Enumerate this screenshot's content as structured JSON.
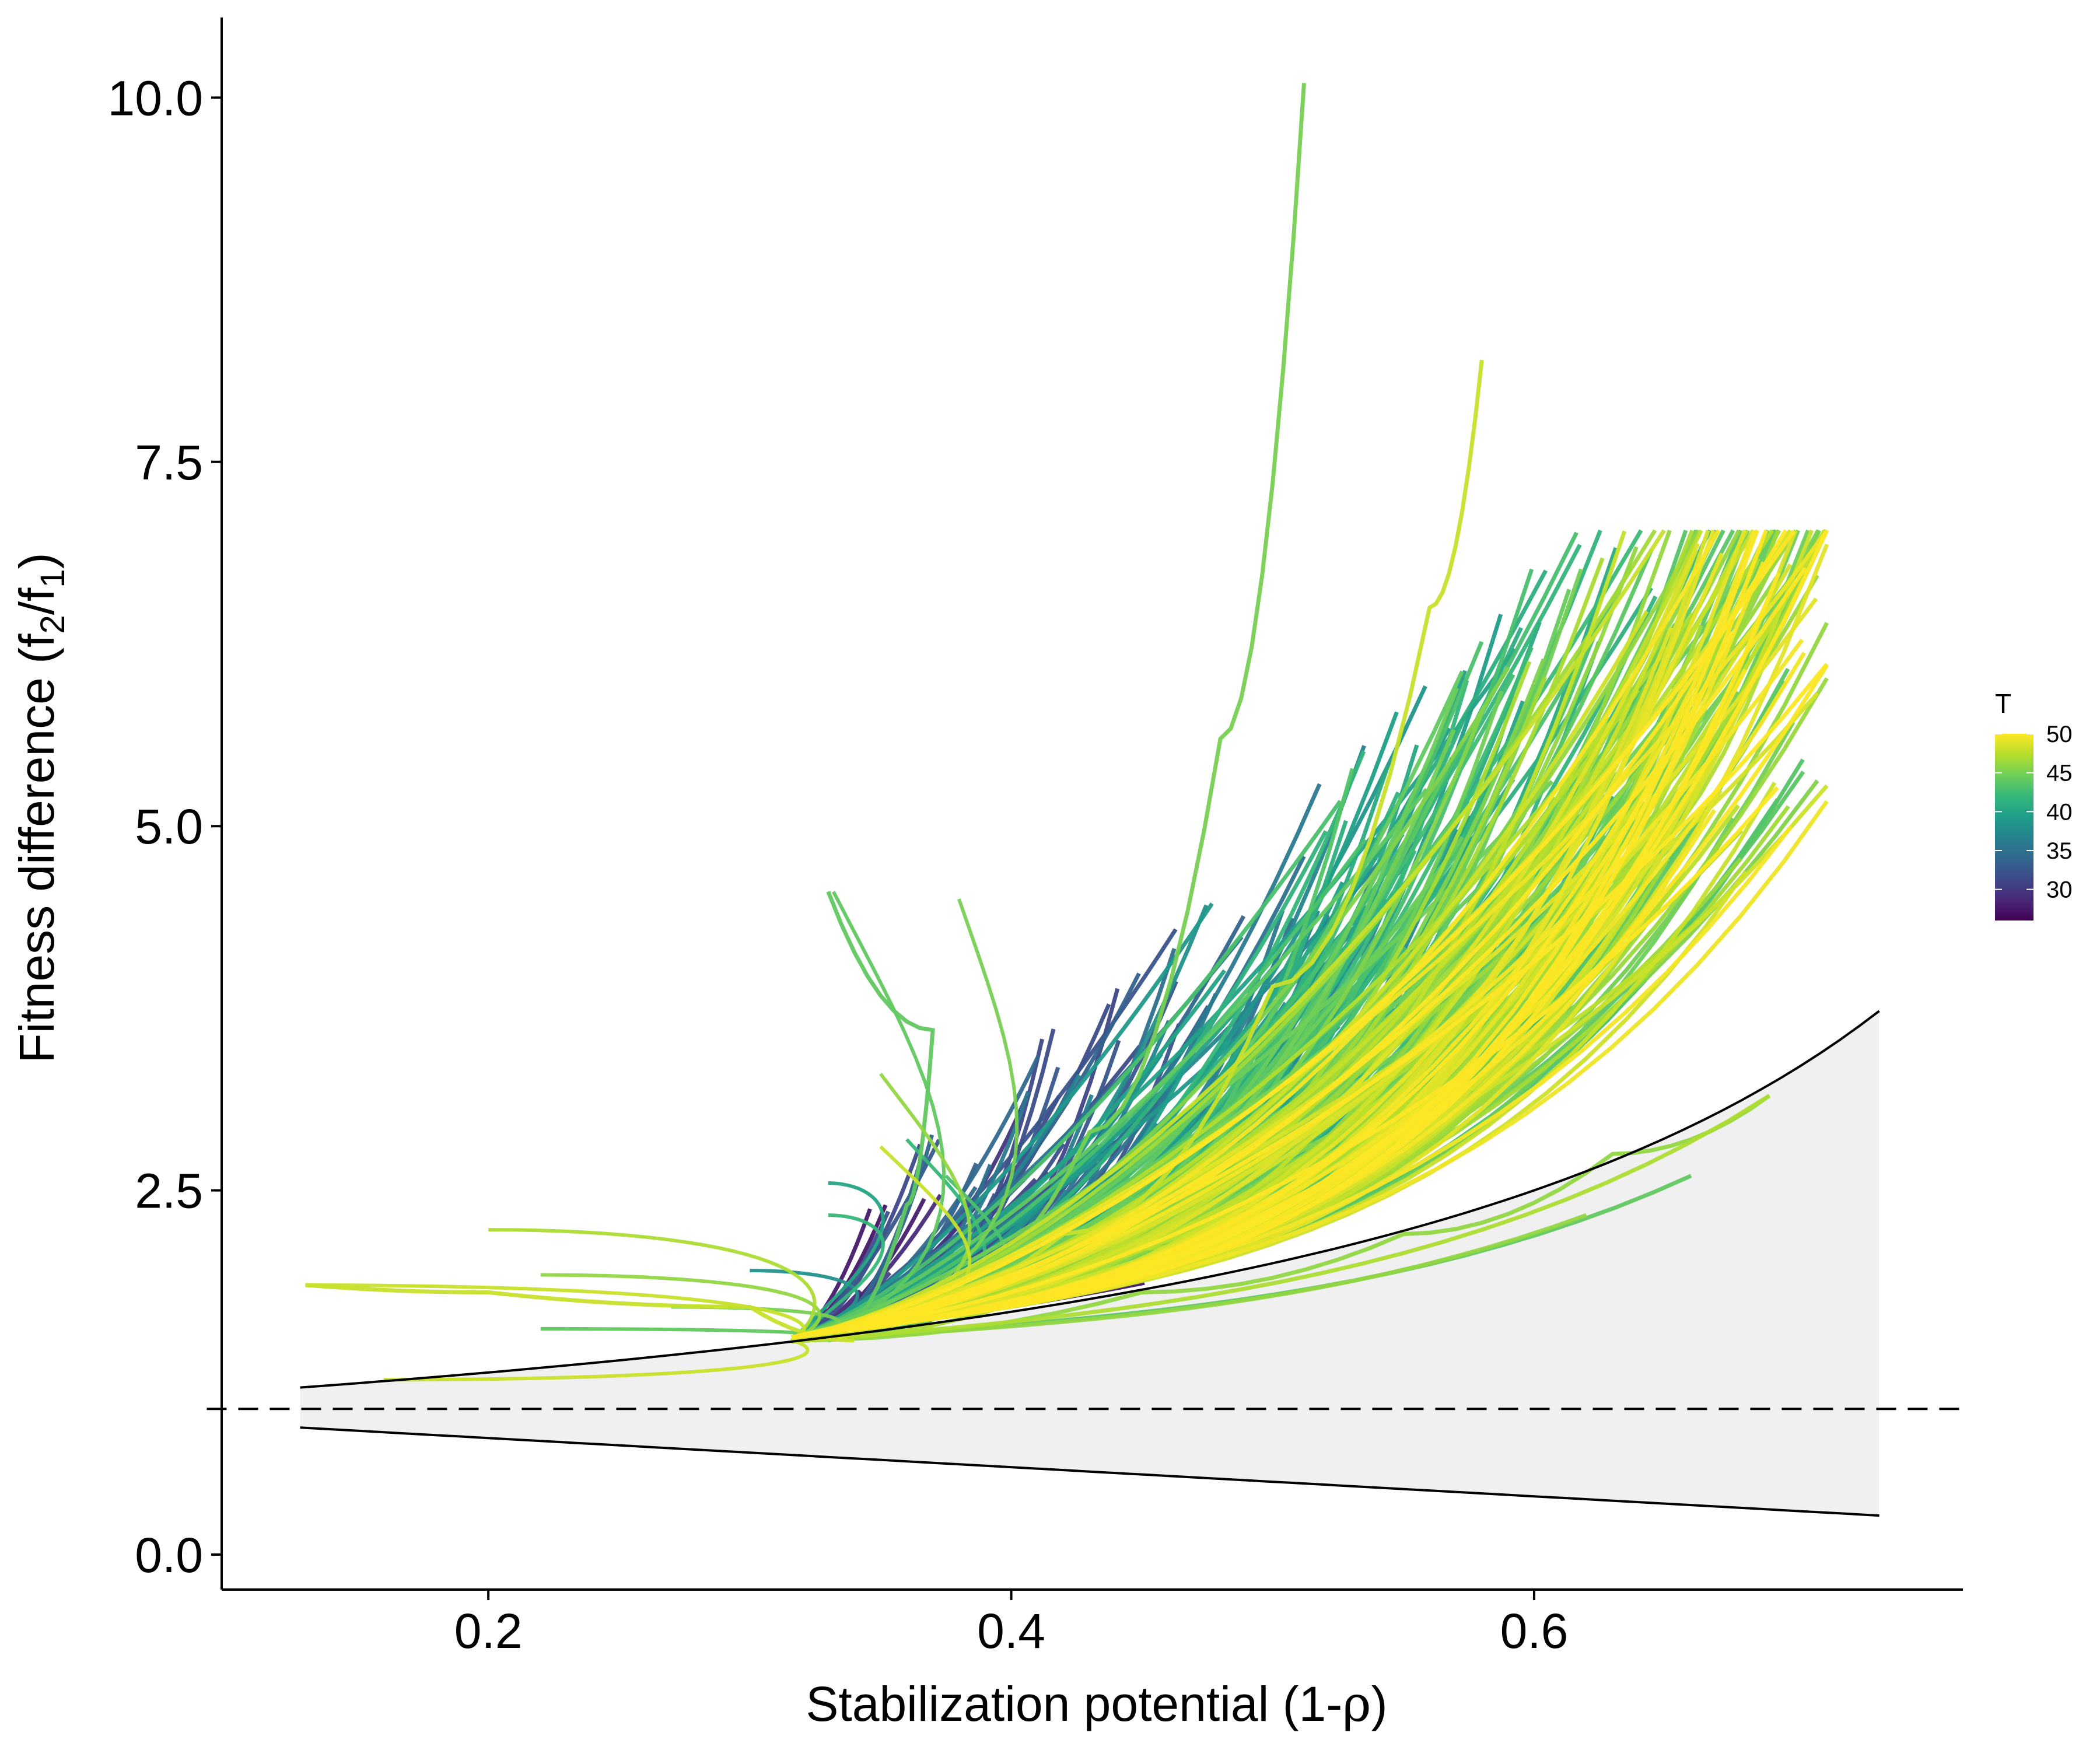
{
  "chart_data": {
    "type": "line",
    "xlabel_main": "Stabilization potential (1-",
    "xlabel_greek": "ρ",
    "xlabel_close": ")",
    "ylabel_main": "Fitness difference (f",
    "ylabel_sub1": "2",
    "ylabel_mid": "/f",
    "ylabel_sub2": "1",
    "ylabel_close": ")",
    "xlim": [
      0.098,
      0.764
    ],
    "ylim": [
      -0.24,
      10.55
    ],
    "x_ticks": [
      0.2,
      0.4,
      0.6
    ],
    "x_tick_labels": [
      "0.2",
      "0.4",
      "0.6"
    ],
    "y_ticks": [
      0.0,
      2.5,
      5.0,
      7.5,
      10.0
    ],
    "y_tick_labels": [
      "0.0",
      "2.5",
      "5.0",
      "7.5",
      "10.0"
    ],
    "grid": false,
    "reference_line": {
      "y": 1.0,
      "style": "dashed"
    },
    "coexistence_region": {
      "x_range": [
        0.128,
        0.732
      ],
      "upper_boundary": "1/(1-x)",
      "lower_boundary": "1-x",
      "fill": "#f0f0f0"
    },
    "color_legend": {
      "title": "T",
      "range": [
        26,
        50
      ],
      "ticks": [
        30,
        35,
        40,
        45,
        50
      ],
      "tick_labels": [
        "30",
        "35",
        "40",
        "45",
        "50"
      ],
      "palette": [
        "#440154",
        "#482878",
        "#3e4a89",
        "#31688e",
        "#26828e",
        "#1f9e89",
        "#35b779",
        "#6ece58",
        "#b5de2b",
        "#fde725"
      ],
      "placement": "right"
    },
    "series_note_values": {
      "trajectory_count": 420,
      "representative_curves": [
        {
          "x": [
            0.316,
            0.37,
            0.43,
            0.48,
            0.512
          ],
          "y": [
            1.47,
            1.8,
            2.9,
            5.6,
            10.1
          ],
          "T": 45
        },
        {
          "x": [
            0.316,
            0.42,
            0.5,
            0.56,
            0.58
          ],
          "y": [
            1.47,
            2.2,
            3.9,
            6.5,
            8.2
          ],
          "T": 48
        },
        {
          "x": [
            0.316,
            0.45,
            0.55,
            0.62,
            0.69
          ],
          "y": [
            1.47,
            2.1,
            3.0,
            4.6,
            6.2
          ],
          "T": 47
        },
        {
          "x": [
            0.316,
            0.45,
            0.55,
            0.63,
            0.69
          ],
          "y": [
            1.47,
            1.8,
            2.2,
            2.75,
            3.15
          ],
          "T": 46
        },
        {
          "x": [
            0.34,
            0.3,
            0.2,
            0.13
          ],
          "y": [
            1.47,
            1.7,
            1.8,
            1.85
          ],
          "T": 48
        },
        {
          "x": [
            0.33,
            0.36,
            0.37,
            0.33
          ],
          "y": [
            1.47,
            2.4,
            3.6,
            4.55
          ],
          "T": 44
        }
      ]
    }
  }
}
